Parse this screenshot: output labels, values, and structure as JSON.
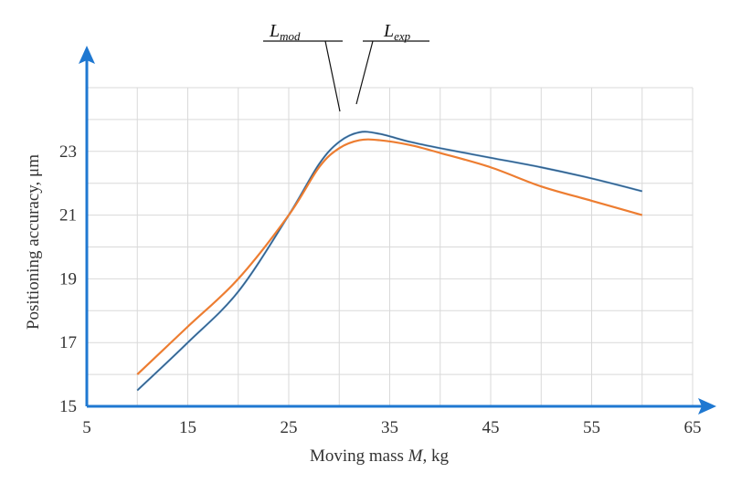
{
  "chart_data": {
    "type": "line",
    "title": "",
    "xlabel_prefix": "Moving mass ",
    "xlabel_var": "M",
    "xlabel_suffix": ", kg",
    "ylabel": "Positioning accuracy, μm",
    "xlim": [
      5,
      65
    ],
    "ylim": [
      15,
      25
    ],
    "xticks": [
      "5",
      "15",
      "25",
      "35",
      "45",
      "55",
      "65"
    ],
    "yticks": [
      "15",
      "17",
      "19",
      "21",
      "23"
    ],
    "grid": true,
    "series": [
      {
        "name": "L_mod",
        "label_main": "L",
        "label_sub": "mod",
        "color": "#5b9bd5",
        "points": [
          [
            10,
            15.5
          ],
          [
            15,
            17.0
          ],
          [
            20,
            18.6
          ],
          [
            25,
            21.0
          ],
          [
            28,
            22.6
          ],
          [
            30,
            23.3
          ],
          [
            32,
            23.6
          ],
          [
            34,
            23.55
          ],
          [
            37,
            23.3
          ],
          [
            40,
            23.1
          ],
          [
            45,
            22.8
          ],
          [
            50,
            22.5
          ],
          [
            55,
            22.15
          ],
          [
            60,
            21.75
          ]
        ]
      },
      {
        "name": "L_exp",
        "label_main": "L",
        "label_sub": "exp",
        "color": "#ed7d31",
        "points": [
          [
            10,
            16.0
          ],
          [
            15,
            17.5
          ],
          [
            20,
            19.0
          ],
          [
            25,
            21.0
          ],
          [
            28,
            22.5
          ],
          [
            30,
            23.1
          ],
          [
            32,
            23.35
          ],
          [
            34,
            23.35
          ],
          [
            37,
            23.2
          ],
          [
            40,
            22.95
          ],
          [
            45,
            22.5
          ],
          [
            50,
            21.9
          ],
          [
            55,
            21.45
          ],
          [
            60,
            21.0
          ]
        ]
      }
    ],
    "axis_color": "#1f78d1"
  }
}
